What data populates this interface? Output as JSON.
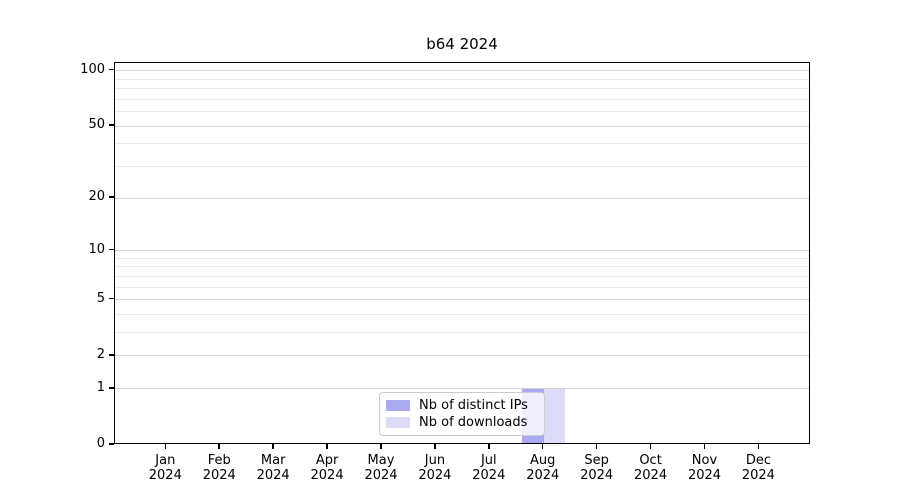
{
  "chart_data": {
    "type": "bar",
    "title": "b64 2024",
    "categories": [
      "Jan",
      "Feb",
      "Mar",
      "Apr",
      "May",
      "Jun",
      "Jul",
      "Aug",
      "Sep",
      "Oct",
      "Nov",
      "Dec"
    ],
    "x_tick_year": "2024",
    "series": [
      {
        "name": "Nb of distinct IPs",
        "color": "#a9a9f0",
        "values": [
          0,
          0,
          0,
          0,
          0,
          0,
          0,
          1,
          0,
          0,
          0,
          0
        ]
      },
      {
        "name": "Nb of downloads",
        "color": "#dcdcf9",
        "values": [
          0,
          0,
          0,
          0,
          0,
          0,
          0,
          1,
          0,
          0,
          0,
          0
        ]
      }
    ],
    "yscale": "log1p",
    "ylim": [
      0,
      110
    ],
    "y_major_ticks": [
      0,
      1,
      2,
      5,
      10,
      20,
      50,
      100
    ],
    "y_minor_ticks": [
      3,
      4,
      6,
      7,
      8,
      9,
      30,
      40,
      60,
      70,
      80,
      90
    ],
    "xlim": [
      -0.952,
      11.957
    ],
    "bar_width": 0.4,
    "grid": "horizontal",
    "legend_position": "lower center"
  },
  "colors": {
    "background": "#ffffff",
    "spine": "#000000",
    "grid_major": "#d4d4d4",
    "grid_minor": "#eaeaea",
    "legend_border": "#cccccc",
    "text": "#000000"
  }
}
